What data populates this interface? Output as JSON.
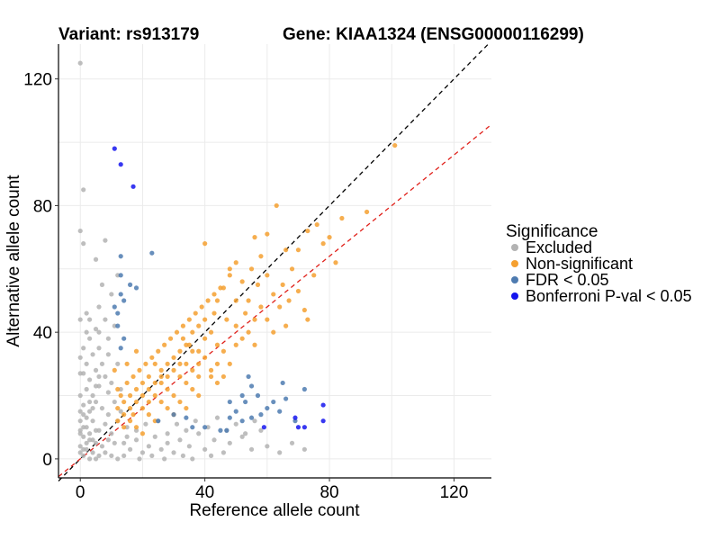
{
  "header": {
    "variant_title": "Variant: rs913179",
    "gene_title": "Gene: KIAA1324 (ENSG00000116299)"
  },
  "chart_data": {
    "type": "scatter",
    "xlabel": "Reference allele count",
    "ylabel": "Alternative allele count",
    "xlim": [
      -7,
      132
    ],
    "ylim": [
      -6,
      131
    ],
    "x_ticks": [
      0,
      40,
      80,
      120
    ],
    "y_ticks": [
      0,
      40,
      80,
      120
    ],
    "grid": true,
    "legend": {
      "title": "Significance",
      "position": "right",
      "entries": [
        {
          "label": "Excluded",
          "color": "#b3b3b3"
        },
        {
          "label": "Non-significant",
          "color": "#f5a030"
        },
        {
          "label": "FDR < 0.05",
          "color": "#4e7bb0"
        },
        {
          "label": "Bonferroni P-val < 0.05",
          "color": "#1515ee"
        }
      ]
    },
    "reference_lines": [
      {
        "style": "dashed",
        "color": "#000000",
        "slope": 1.0,
        "intercept": 0
      },
      {
        "style": "dashed",
        "color": "#e0201a",
        "slope": 0.8,
        "intercept": 0
      }
    ],
    "series": [
      {
        "name": "Excluded",
        "color": "#b3b3b3",
        "points": [
          [
            0,
            125
          ],
          [
            1,
            85
          ],
          [
            0,
            72
          ],
          [
            1,
            68
          ],
          [
            5,
            63
          ],
          [
            8,
            69
          ],
          [
            0,
            44
          ],
          [
            2,
            46
          ],
          [
            6,
            48
          ],
          [
            10,
            52
          ],
          [
            7,
            55
          ],
          [
            12,
            58
          ],
          [
            3,
            38
          ],
          [
            5,
            41
          ],
          [
            8,
            44
          ],
          [
            9,
            38
          ],
          [
            11,
            42
          ],
          [
            4,
            33
          ],
          [
            6,
            35
          ],
          [
            2,
            30
          ],
          [
            7,
            30
          ],
          [
            9,
            33
          ],
          [
            1,
            27
          ],
          [
            3,
            25
          ],
          [
            5,
            28
          ],
          [
            8,
            26
          ],
          [
            10,
            24
          ],
          [
            12,
            30
          ],
          [
            2,
            22
          ],
          [
            4,
            20
          ],
          [
            6,
            23
          ],
          [
            9,
            21
          ],
          [
            11,
            18
          ],
          [
            1,
            17
          ],
          [
            3,
            15
          ],
          [
            5,
            18
          ],
          [
            7,
            16
          ],
          [
            9,
            14
          ],
          [
            12,
            12
          ],
          [
            0,
            12
          ],
          [
            2,
            10
          ],
          [
            4,
            12
          ],
          [
            6,
            9
          ],
          [
            8,
            11
          ],
          [
            10,
            8
          ],
          [
            1,
            7
          ],
          [
            3,
            6
          ],
          [
            5,
            5
          ],
          [
            7,
            4
          ],
          [
            9,
            6
          ],
          [
            11,
            5
          ],
          [
            0,
            4
          ],
          [
            2,
            3
          ],
          [
            4,
            2
          ],
          [
            6,
            1
          ],
          [
            8,
            2
          ],
          [
            10,
            1
          ],
          [
            12,
            0
          ],
          [
            1,
            1
          ],
          [
            3,
            0
          ],
          [
            5,
            0
          ],
          [
            14,
            5
          ],
          [
            16,
            3
          ],
          [
            18,
            6
          ],
          [
            20,
            2
          ],
          [
            22,
            4
          ],
          [
            24,
            7
          ],
          [
            26,
            3
          ],
          [
            28,
            5
          ],
          [
            30,
            2
          ],
          [
            32,
            6
          ],
          [
            35,
            4
          ],
          [
            38,
            8
          ],
          [
            40,
            3
          ],
          [
            43,
            6
          ],
          [
            46,
            2
          ],
          [
            48,
            5
          ],
          [
            52,
            7
          ],
          [
            55,
            3
          ],
          [
            58,
            9
          ],
          [
            60,
            4
          ],
          [
            64,
            2
          ],
          [
            68,
            5
          ],
          [
            72,
            3
          ],
          [
            15,
            10
          ],
          [
            18,
            9
          ],
          [
            21,
            11
          ],
          [
            25,
            12
          ],
          [
            28,
            8
          ],
          [
            31,
            11
          ],
          [
            34,
            9
          ],
          [
            37,
            12
          ],
          [
            41,
            10
          ],
          [
            44,
            13
          ],
          [
            47,
            9
          ],
          [
            50,
            11
          ],
          [
            53,
            8
          ],
          [
            56,
            12
          ],
          [
            14,
            1
          ],
          [
            19,
            0
          ],
          [
            23,
            1
          ],
          [
            27,
            0
          ],
          [
            33,
            1
          ],
          [
            36,
            0
          ],
          [
            42,
            1
          ],
          [
            0,
            20
          ],
          [
            1,
            35
          ],
          [
            2,
            40
          ],
          [
            0,
            32
          ],
          [
            1,
            14
          ],
          [
            3,
            44
          ],
          [
            6,
            40
          ],
          [
            13,
            22
          ],
          [
            13,
            15
          ],
          [
            15,
            7
          ],
          [
            0,
            2
          ],
          [
            1,
            3
          ],
          [
            2,
            5
          ],
          [
            3,
            8
          ],
          [
            4,
            6
          ],
          [
            5,
            9
          ],
          [
            0,
            9
          ],
          [
            1,
            10
          ],
          [
            2,
            13
          ],
          [
            3,
            18
          ],
          [
            0,
            15
          ],
          [
            4,
            16
          ],
          [
            0,
            27
          ],
          [
            5,
            23
          ],
          [
            6,
            26
          ],
          [
            0,
            8
          ]
        ]
      },
      {
        "name": "Non-significant",
        "color": "#f5a030",
        "points": [
          [
            101,
            99
          ],
          [
            92,
            78
          ],
          [
            84,
            76
          ],
          [
            80,
            70
          ],
          [
            82,
            62
          ],
          [
            78,
            68
          ],
          [
            76,
            74
          ],
          [
            75,
            58
          ],
          [
            73,
            72
          ],
          [
            70,
            66
          ],
          [
            68,
            60
          ],
          [
            66,
            66
          ],
          [
            63,
            80
          ],
          [
            60,
            71
          ],
          [
            58,
            64
          ],
          [
            56,
            70
          ],
          [
            65,
            55
          ],
          [
            62,
            52
          ],
          [
            67,
            50
          ],
          [
            72,
            47
          ],
          [
            73,
            44
          ],
          [
            70,
            53
          ],
          [
            64,
            48
          ],
          [
            60,
            58
          ],
          [
            57,
            55
          ],
          [
            55,
            60
          ],
          [
            54,
            50
          ],
          [
            52,
            56
          ],
          [
            50,
            62
          ],
          [
            48,
            58
          ],
          [
            50,
            50
          ],
          [
            53,
            46
          ],
          [
            56,
            44
          ],
          [
            58,
            48
          ],
          [
            46,
            54
          ],
          [
            44,
            50
          ],
          [
            43,
            46
          ],
          [
            47,
            44
          ],
          [
            50,
            42
          ],
          [
            52,
            38
          ],
          [
            42,
            40
          ],
          [
            40,
            44
          ],
          [
            40,
            38
          ],
          [
            38,
            42
          ],
          [
            36,
            40
          ],
          [
            38,
            34
          ],
          [
            40,
            32
          ],
          [
            44,
            36
          ],
          [
            46,
            34
          ],
          [
            48,
            30
          ],
          [
            35,
            36
          ],
          [
            33,
            38
          ],
          [
            32,
            34
          ],
          [
            34,
            30
          ],
          [
            36,
            28
          ],
          [
            38,
            26
          ],
          [
            42,
            28
          ],
          [
            44,
            24
          ],
          [
            30,
            32
          ],
          [
            28,
            30
          ],
          [
            30,
            28
          ],
          [
            32,
            26
          ],
          [
            34,
            24
          ],
          [
            36,
            22
          ],
          [
            38,
            20
          ],
          [
            26,
            28
          ],
          [
            24,
            30
          ],
          [
            26,
            24
          ],
          [
            28,
            22
          ],
          [
            30,
            20
          ],
          [
            32,
            18
          ],
          [
            34,
            16
          ],
          [
            22,
            26
          ],
          [
            20,
            24
          ],
          [
            22,
            22
          ],
          [
            24,
            20
          ],
          [
            26,
            18
          ],
          [
            28,
            16
          ],
          [
            30,
            14
          ],
          [
            18,
            22
          ],
          [
            16,
            20
          ],
          [
            18,
            18
          ],
          [
            20,
            16
          ],
          [
            22,
            14
          ],
          [
            24,
            12
          ],
          [
            14,
            18
          ],
          [
            12,
            16
          ],
          [
            14,
            14
          ],
          [
            16,
            12
          ],
          [
            18,
            10
          ],
          [
            20,
            8
          ],
          [
            12,
            12
          ],
          [
            13,
            20
          ],
          [
            15,
            24
          ],
          [
            17,
            26
          ],
          [
            19,
            28
          ],
          [
            21,
            30
          ],
          [
            23,
            32
          ],
          [
            25,
            34
          ],
          [
            27,
            36
          ],
          [
            29,
            38
          ],
          [
            31,
            40
          ],
          [
            33,
            42
          ],
          [
            35,
            44
          ],
          [
            37,
            46
          ],
          [
            39,
            48
          ],
          [
            41,
            50
          ],
          [
            43,
            52
          ],
          [
            45,
            54
          ],
          [
            15,
            30
          ],
          [
            18,
            34
          ],
          [
            11,
            28
          ],
          [
            12,
            22
          ],
          [
            46,
            26
          ],
          [
            50,
            36
          ],
          [
            54,
            40
          ],
          [
            56,
            36
          ],
          [
            60,
            44
          ],
          [
            62,
            40
          ],
          [
            66,
            42
          ],
          [
            40,
            68
          ],
          [
            48,
            60
          ],
          [
            42,
            26
          ],
          [
            44,
            30
          ],
          [
            38,
            30
          ],
          [
            36,
            34
          ],
          [
            34,
            36
          ],
          [
            32,
            30
          ],
          [
            28,
            26
          ],
          [
            26,
            26
          ],
          [
            24,
            24
          ],
          [
            22,
            18
          ],
          [
            20,
            20
          ],
          [
            16,
            16
          ],
          [
            14,
            10
          ],
          [
            17,
            14
          ]
        ]
      },
      {
        "name": "FDR < 0.05",
        "color": "#4e7bb0",
        "points": [
          [
            13,
            64
          ],
          [
            13,
            58
          ],
          [
            13,
            52
          ],
          [
            16,
            55
          ],
          [
            18,
            54
          ],
          [
            23,
            65
          ],
          [
            11,
            48
          ],
          [
            12,
            46
          ],
          [
            14,
            50
          ],
          [
            12,
            42
          ],
          [
            14,
            38
          ],
          [
            13,
            35
          ],
          [
            54,
            26
          ],
          [
            55,
            23
          ],
          [
            52,
            20
          ],
          [
            50,
            15
          ],
          [
            52,
            12
          ],
          [
            55,
            13
          ],
          [
            53,
            18
          ],
          [
            57,
            20
          ],
          [
            60,
            16
          ],
          [
            62,
            18
          ],
          [
            58,
            14
          ],
          [
            65,
            24
          ],
          [
            66,
            19
          ],
          [
            64,
            15
          ],
          [
            69,
            12
          ],
          [
            72,
            22
          ],
          [
            48,
            13
          ],
          [
            45,
            9
          ],
          [
            40,
            10
          ],
          [
            30,
            14
          ],
          [
            25,
            12
          ],
          [
            34,
            13
          ],
          [
            36,
            10
          ],
          [
            48,
            18
          ],
          [
            47,
            9
          ]
        ]
      },
      {
        "name": "Bonferroni P-val < 0.05",
        "color": "#1515ee",
        "points": [
          [
            11,
            98
          ],
          [
            13,
            93
          ],
          [
            17,
            86
          ],
          [
            78,
            17
          ],
          [
            78,
            12
          ],
          [
            69,
            13
          ],
          [
            72,
            10
          ],
          [
            70,
            10
          ],
          [
            59,
            10
          ]
        ]
      }
    ]
  }
}
